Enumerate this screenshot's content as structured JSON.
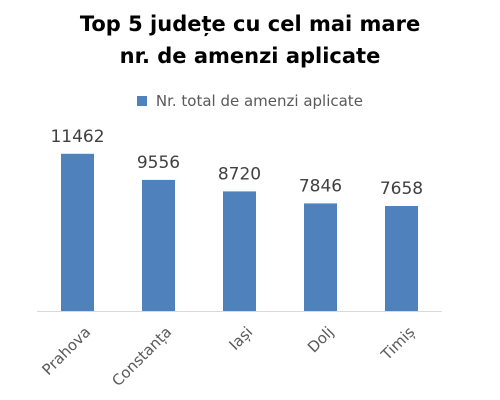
{
  "chart_data": {
    "type": "bar",
    "title": "Top 5 județe cu cel mai mare nr. de amenzi aplicate",
    "title_lines": [
      "Top 5 județe cu cel mai mare",
      "nr. de amenzi aplicate"
    ],
    "categories": [
      "Prahova",
      "Constanța",
      "Iași",
      "Dolj",
      "Timiș"
    ],
    "series": [
      {
        "name": "Nr. total de amenzi aplicate",
        "values": [
          11462,
          9556,
          8720,
          7846,
          7658
        ],
        "color": "#4f81bd"
      }
    ],
    "data_labels": [
      "11462",
      "9556",
      "8720",
      "7846",
      "7658"
    ],
    "legend_position": "top",
    "grid": false,
    "xlabel": "",
    "ylabel": "",
    "ylim": [
      0,
      14000
    ]
  }
}
